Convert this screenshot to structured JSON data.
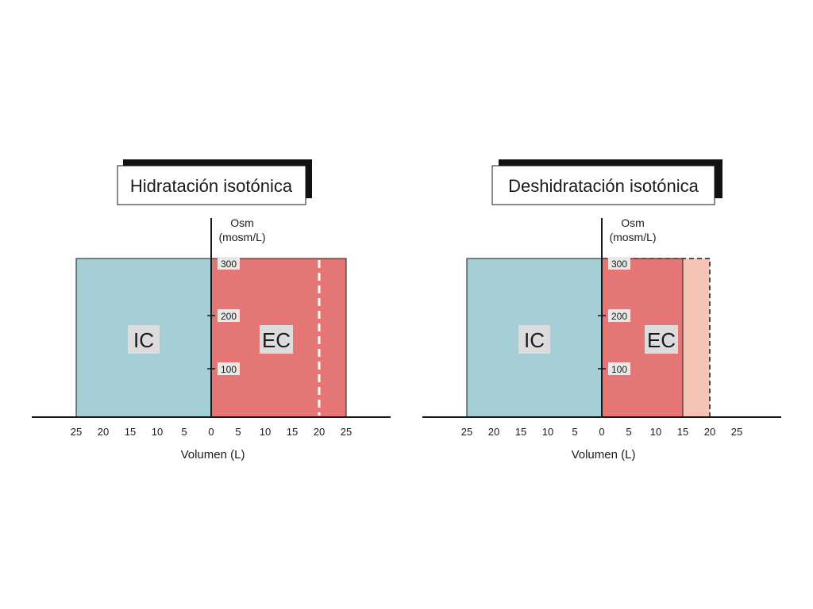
{
  "colors": {
    "ic": "#a6ced6",
    "ec": "#e57676",
    "ec_removed": "#f5c4b4",
    "label_bg": "#dcdcdc",
    "tick_label_bg": "#e8e8e8",
    "ink": "#1a1a1a",
    "shadow": "#111111"
  },
  "panels": [
    {
      "title": "Hidratación isotónica",
      "y_axis_label": [
        "Osm",
        "(mosm/L)"
      ],
      "y_ticks": [
        "100",
        "200",
        "300"
      ],
      "x_axis_label": "Volumen (L)",
      "x_ticks_left": [
        "25",
        "20",
        "15",
        "10",
        "5"
      ],
      "x_ticks_right": [
        "0",
        "5",
        "10",
        "15",
        "20",
        "25"
      ],
      "compartments": [
        {
          "label": "IC",
          "volume_l": 25,
          "osm": 300
        },
        {
          "label": "EC",
          "volume_l": 25,
          "osm": 300
        }
      ],
      "reference_ec_volume_l": 20,
      "reference_style": "dashed-line"
    },
    {
      "title": "Deshidratación isotónica",
      "y_axis_label": [
        "Osm",
        "(mosm/L)"
      ],
      "y_ticks": [
        "100",
        "200",
        "300"
      ],
      "x_axis_label": "Volumen (L)",
      "x_ticks_left": [
        "25",
        "20",
        "15",
        "10",
        "5"
      ],
      "x_ticks_right": [
        "0",
        "5",
        "10",
        "15",
        "20",
        "25"
      ],
      "compartments": [
        {
          "label": "IC",
          "volume_l": 25,
          "osm": 300
        },
        {
          "label": "EC",
          "volume_l": 15,
          "osm": 300
        }
      ],
      "reference_ec_volume_l": 20,
      "reference_style": "dashed-box"
    }
  ]
}
